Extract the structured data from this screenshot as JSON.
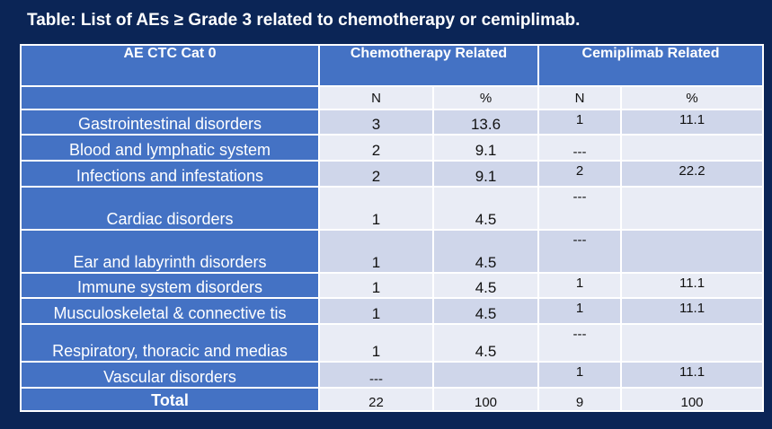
{
  "title": "Table: List of AEs ≥ Grade 3 related to chemotherapy or cemiplimab.",
  "headers": {
    "category": "AE CTC Cat 0",
    "chemo": "Chemotherapy Related",
    "cemi": "Cemiplimab Related"
  },
  "subheaders": {
    "chemo_n": "N",
    "chemo_pct": "%",
    "cemi_n": "N",
    "cemi_pct": "%"
  },
  "rows": [
    {
      "category": "Gastrointestinal disorders",
      "chemo_n": "3",
      "chemo_pct": "13.6",
      "cemi_n": "1",
      "cemi_pct": "11.1"
    },
    {
      "category": "Blood and lymphatic system",
      "chemo_n": "2",
      "chemo_pct": "9.1",
      "cemi_n": "---",
      "cemi_pct": ""
    },
    {
      "category": "Infections and infestations",
      "chemo_n": "2",
      "chemo_pct": "9.1",
      "cemi_n": "2",
      "cemi_pct": "22.2"
    },
    {
      "category": "Cardiac disorders",
      "chemo_n": "1",
      "chemo_pct": "4.5",
      "cemi_n": "---",
      "cemi_pct": ""
    },
    {
      "category": "Ear and labyrinth disorders",
      "chemo_n": "1",
      "chemo_pct": "4.5",
      "cemi_n": "---",
      "cemi_pct": ""
    },
    {
      "category": "Immune system disorders",
      "chemo_n": "1",
      "chemo_pct": "4.5",
      "cemi_n": "1",
      "cemi_pct": "11.1"
    },
    {
      "category": "Musculoskeletal & connective tis",
      "chemo_n": "1",
      "chemo_pct": "4.5",
      "cemi_n": "1",
      "cemi_pct": "11.1"
    },
    {
      "category": "Respiratory, thoracic and medias",
      "chemo_n": "1",
      "chemo_pct": "4.5",
      "cemi_n": "---",
      "cemi_pct": ""
    },
    {
      "category": "Vascular disorders",
      "chemo_n": "---",
      "chemo_pct": "",
      "cemi_n": "1",
      "cemi_pct": "11.1"
    }
  ],
  "total": {
    "category": "Total",
    "chemo_n": "22",
    "chemo_pct": "100",
    "cemi_n": "9",
    "cemi_pct": "100"
  }
}
